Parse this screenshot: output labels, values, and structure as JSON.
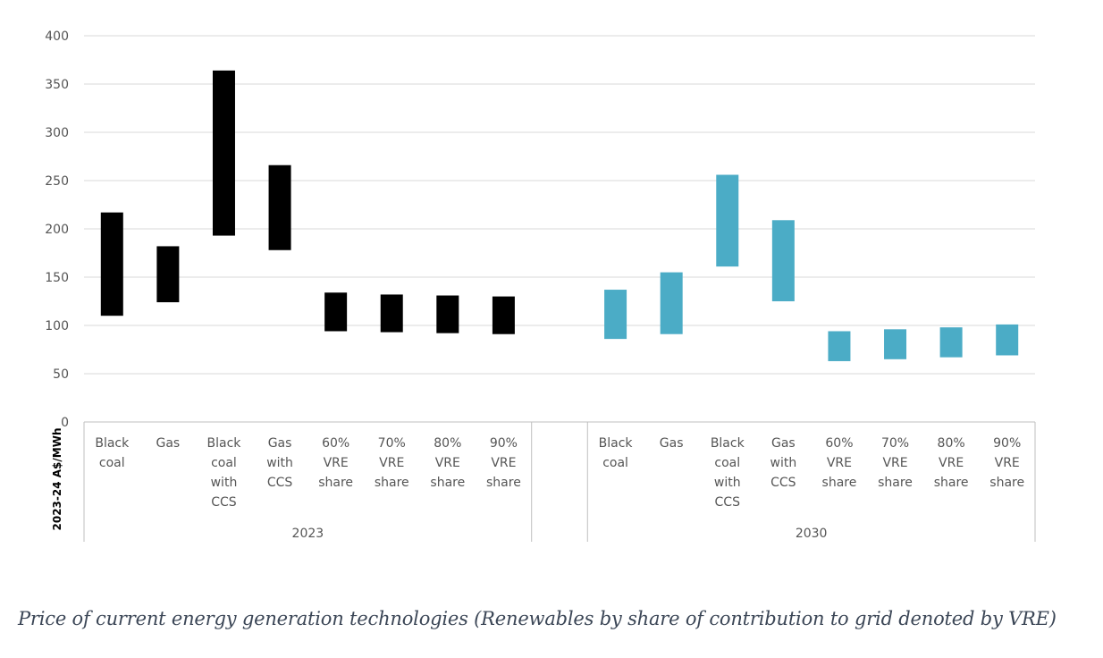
{
  "chart_data": {
    "type": "bar",
    "subtype": "floating-range",
    "ylabel": "2023-24 A$/MWh",
    "ylim": [
      0,
      400
    ],
    "yticks": [
      0,
      50,
      100,
      150,
      200,
      250,
      300,
      350,
      400
    ],
    "grid": true,
    "groups": [
      {
        "label": "2023",
        "color": "#000000",
        "categories": [
          {
            "label": [
              "Black",
              "coal"
            ],
            "low": 110,
            "high": 217
          },
          {
            "label": [
              "Gas"
            ],
            "low": 124,
            "high": 182
          },
          {
            "label": [
              "Black",
              "coal",
              "with",
              "CCS"
            ],
            "low": 193,
            "high": 364
          },
          {
            "label": [
              "Gas",
              "with",
              "CCS"
            ],
            "low": 178,
            "high": 266
          },
          {
            "label": [
              "60%",
              "VRE",
              "share"
            ],
            "low": 94,
            "high": 134
          },
          {
            "label": [
              "70%",
              "VRE",
              "share"
            ],
            "low": 93,
            "high": 132
          },
          {
            "label": [
              "80%",
              "VRE",
              "share"
            ],
            "low": 92,
            "high": 131
          },
          {
            "label": [
              "90%",
              "VRE",
              "share"
            ],
            "low": 91,
            "high": 130
          }
        ]
      },
      {
        "label": "2030",
        "color": "#4bacc6",
        "categories": [
          {
            "label": [
              "Black",
              "coal"
            ],
            "low": 86,
            "high": 137
          },
          {
            "label": [
              "Gas"
            ],
            "low": 91,
            "high": 155
          },
          {
            "label": [
              "Black",
              "coal",
              "with",
              "CCS"
            ],
            "low": 161,
            "high": 256
          },
          {
            "label": [
              "Gas",
              "with",
              "CCS"
            ],
            "low": 125,
            "high": 209
          },
          {
            "label": [
              "60%",
              "VRE",
              "share"
            ],
            "low": 63,
            "high": 94
          },
          {
            "label": [
              "70%",
              "VRE",
              "share"
            ],
            "low": 65,
            "high": 96
          },
          {
            "label": [
              "80%",
              "VRE",
              "share"
            ],
            "low": 67,
            "high": 98
          },
          {
            "label": [
              "90%",
              "VRE",
              "share"
            ],
            "low": 69,
            "high": 101
          }
        ]
      }
    ]
  },
  "caption": "Price of current energy generation technologies (Renewables by share of contribution to grid denoted by VRE)"
}
